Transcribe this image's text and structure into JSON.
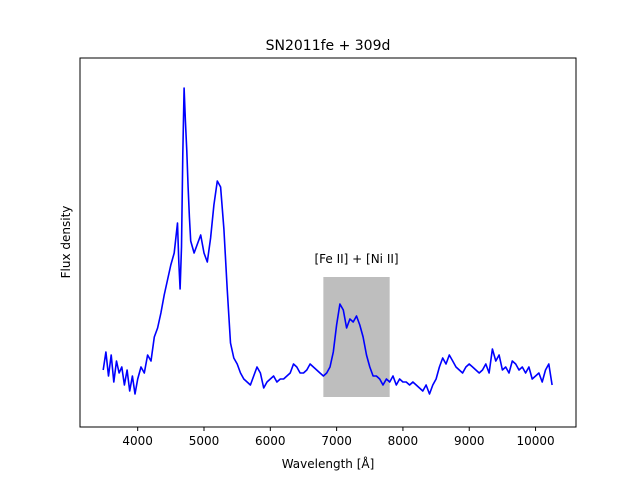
{
  "chart_data": {
    "type": "line",
    "title": "SN2011fe + 309d",
    "xlabel": "Wavelength [Å]",
    "ylabel": "Flux density",
    "xlim": [
      3130,
      10610
    ],
    "ylim": [
      -0.06,
      1.17
    ],
    "xticks": [
      4000,
      5000,
      6000,
      7000,
      8000,
      9000,
      10000
    ],
    "yticks_visible": false,
    "grid": false,
    "line_color": "#0000ff",
    "highlight_region": {
      "x_range": [
        6800,
        7800
      ],
      "y_range": [
        0.04,
        0.44
      ],
      "color": "#bebebe",
      "label": "[Fe II] + [Ni II]"
    },
    "series": [
      {
        "x": [
          3480,
          3520,
          3560,
          3600,
          3640,
          3680,
          3720,
          3760,
          3800,
          3840,
          3880,
          3920,
          3960,
          4000,
          4050,
          4100,
          4150,
          4200,
          4250,
          4300,
          4350,
          4400,
          4450,
          4500,
          4550,
          4600,
          4620,
          4640,
          4660,
          4680,
          4700,
          4720,
          4740,
          4760,
          4780,
          4800,
          4850,
          4900,
          4950,
          5000,
          5050,
          5100,
          5150,
          5200,
          5250,
          5300,
          5350,
          5400,
          5450,
          5500,
          5550,
          5600,
          5650,
          5700,
          5750,
          5800,
          5850,
          5900,
          5950,
          6000,
          6050,
          6100,
          6150,
          6200,
          6250,
          6300,
          6350,
          6400,
          6450,
          6500,
          6550,
          6600,
          6650,
          6700,
          6750,
          6800,
          6850,
          6900,
          6950,
          7000,
          7050,
          7100,
          7150,
          7200,
          7250,
          7300,
          7350,
          7400,
          7450,
          7500,
          7550,
          7600,
          7650,
          7700,
          7750,
          7800,
          7850,
          7900,
          7950,
          8000,
          8050,
          8100,
          8150,
          8200,
          8250,
          8300,
          8350,
          8400,
          8450,
          8500,
          8550,
          8600,
          8650,
          8700,
          8750,
          8800,
          8850,
          8900,
          8950,
          9000,
          9050,
          9100,
          9150,
          9200,
          9250,
          9300,
          9350,
          9400,
          9450,
          9500,
          9550,
          9600,
          9650,
          9700,
          9750,
          9800,
          9850,
          9900,
          9950,
          10000,
          10050,
          10100,
          10150,
          10200,
          10250
        ],
        "y": [
          0.13,
          0.19,
          0.11,
          0.18,
          0.09,
          0.16,
          0.12,
          0.14,
          0.08,
          0.13,
          0.06,
          0.11,
          0.05,
          0.1,
          0.14,
          0.12,
          0.18,
          0.16,
          0.24,
          0.27,
          0.32,
          0.38,
          0.43,
          0.48,
          0.52,
          0.62,
          0.49,
          0.4,
          0.54,
          0.85,
          1.07,
          0.96,
          0.86,
          0.74,
          0.64,
          0.56,
          0.52,
          0.55,
          0.58,
          0.52,
          0.49,
          0.57,
          0.68,
          0.76,
          0.74,
          0.6,
          0.4,
          0.22,
          0.17,
          0.15,
          0.12,
          0.1,
          0.09,
          0.08,
          0.11,
          0.14,
          0.12,
          0.07,
          0.09,
          0.1,
          0.11,
          0.09,
          0.1,
          0.1,
          0.11,
          0.12,
          0.15,
          0.14,
          0.12,
          0.12,
          0.13,
          0.15,
          0.14,
          0.13,
          0.12,
          0.11,
          0.12,
          0.14,
          0.19,
          0.28,
          0.35,
          0.33,
          0.27,
          0.3,
          0.29,
          0.31,
          0.28,
          0.24,
          0.18,
          0.14,
          0.11,
          0.11,
          0.1,
          0.08,
          0.1,
          0.09,
          0.11,
          0.08,
          0.1,
          0.09,
          0.09,
          0.08,
          0.09,
          0.08,
          0.07,
          0.06,
          0.08,
          0.05,
          0.08,
          0.1,
          0.14,
          0.17,
          0.15,
          0.18,
          0.16,
          0.14,
          0.13,
          0.12,
          0.14,
          0.15,
          0.14,
          0.13,
          0.12,
          0.13,
          0.15,
          0.12,
          0.2,
          0.16,
          0.18,
          0.13,
          0.14,
          0.12,
          0.16,
          0.15,
          0.13,
          0.14,
          0.12,
          0.14,
          0.1,
          0.11,
          0.12,
          0.09,
          0.13,
          0.15,
          0.08
        ]
      }
    ]
  }
}
